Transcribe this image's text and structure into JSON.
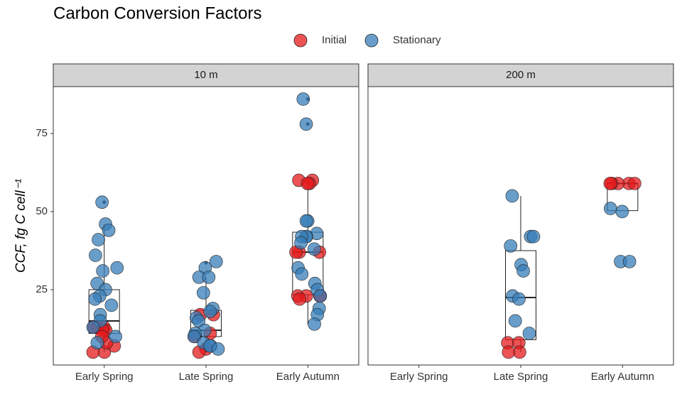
{
  "chart_data": {
    "type": "box-jitter",
    "title": "Carbon Conversion Factors",
    "ylabel": "CCF, fg C cell⁻¹",
    "categories": [
      "Early Spring",
      "Late Spring",
      "Early Autumn"
    ],
    "ylim": [
      0.9,
      90
    ],
    "yticks": [
      25,
      50,
      75
    ],
    "legend": "top",
    "series": [
      {
        "name": "Initial",
        "color": "#e41a1c"
      },
      {
        "name": "Stationary",
        "color": "#377eb8"
      }
    ],
    "facets": [
      {
        "label": "10 m",
        "points": [
          [
            [
              13,
              12,
              13,
              13,
              12,
              5,
              5,
              7,
              8,
              10
            ],
            [
              17,
              17,
              11,
              10,
              6,
              5
            ],
            [
              60,
              60,
              59,
              59,
              37,
              37,
              37,
              23,
              23,
              23,
              23,
              22
            ]
          ],
          [
            [
              53,
              46,
              44,
              41,
              36,
              32,
              31,
              27,
              25,
              23,
              22,
              20,
              17,
              15,
              13,
              10,
              8
            ],
            [
              34,
              32,
              29,
              29,
              24,
              19,
              18,
              16,
              15,
              12,
              11,
              10,
              8,
              7,
              7,
              6
            ],
            [
              86,
              78,
              47,
              47,
              43,
              42,
              42,
              42,
              40,
              38,
              32,
              30,
              27,
              25,
              23,
              19,
              17,
              14
            ]
          ]
        ],
        "boxes": [
          {
            "whislo": 5,
            "q1": 11,
            "median": 15,
            "q3": 25,
            "whishi": 46,
            "outliers": [
              53
            ]
          },
          {
            "whislo": 5,
            "q1": 10,
            "median": 12,
            "q3": 18.4,
            "whishi": 29,
            "outliers": [
              33.6
            ]
          },
          {
            "whislo": 14,
            "q1": 23.4,
            "median": 37,
            "q3": 43.4,
            "whishi": 60,
            "outliers": [
              86,
              78
            ]
          }
        ]
      },
      {
        "label": "200 m",
        "points": [
          [
            [],
            [
              8,
              8,
              5,
              5
            ],
            [
              59,
              59,
              59,
              59,
              59
            ]
          ],
          [
            [],
            [
              55,
              42,
              42,
              39,
              33,
              31,
              23,
              22,
              15,
              11
            ],
            [
              51,
              50,
              34,
              34
            ]
          ]
        ],
        "boxes": [
          null,
          {
            "whislo": 5,
            "q1": 9,
            "median": 22.5,
            "q3": 37.5,
            "whishi": 55,
            "outliers": []
          },
          {
            "whislo": 50.3,
            "q1": 50.3,
            "median": 59,
            "q3": 59,
            "whishi": 59,
            "outliers": []
          }
        ]
      }
    ]
  }
}
